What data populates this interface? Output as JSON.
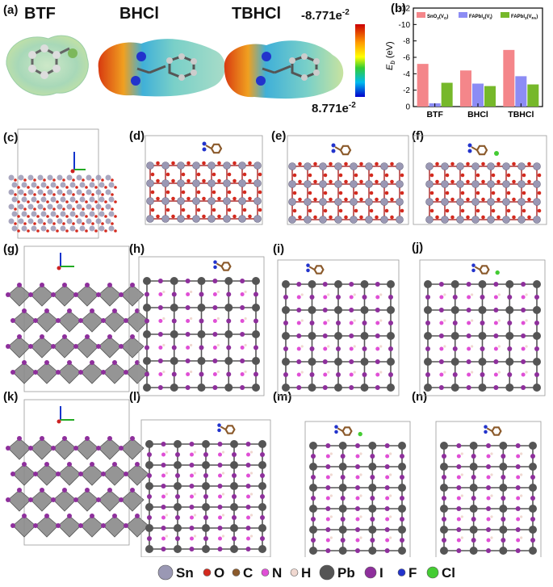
{
  "figure": {
    "panel_a": {
      "label": "(a)",
      "molecules": [
        "BTF",
        "BHCl",
        "TBHCl"
      ],
      "colorbar": {
        "max_label": "-8.771e",
        "max_exp": "-2",
        "min_label": "8.771e",
        "min_exp": "-2"
      }
    },
    "panel_b": {
      "label": "(b)"
    },
    "panel_labels": [
      "(c)",
      "(d)",
      "(e)",
      "(f)",
      "(g)",
      "(h)",
      "(i)",
      "(j)",
      "(k)",
      "(l)",
      "(m)",
      "(n)"
    ],
    "legend": [
      {
        "symbol": "Sn",
        "color": "#9a98b4",
        "size": "large"
      },
      {
        "symbol": "O",
        "color": "#d42a1e",
        "size": "small"
      },
      {
        "symbol": "C",
        "color": "#8b5a2b",
        "size": "small"
      },
      {
        "symbol": "N",
        "color": "#e04fd6",
        "size": "small"
      },
      {
        "symbol": "H",
        "color": "#f0d8d0",
        "size": "small"
      },
      {
        "symbol": "Pb",
        "color": "#555555",
        "size": "large"
      },
      {
        "symbol": "I",
        "color": "#8e2f9c",
        "size": "medium"
      },
      {
        "symbol": "F",
        "color": "#2233cc",
        "size": "small"
      },
      {
        "symbol": "Cl",
        "color": "#44cc33",
        "size": "medium"
      }
    ]
  },
  "chart_data": {
    "type": "bar",
    "title": "",
    "xlabel": "",
    "ylabel": "E_b (eV)",
    "ylabel_main": "E",
    "ylabel_sub": "b",
    "ylabel_unit": " (eV)",
    "ylim": [
      0,
      -12
    ],
    "yticks": [
      0,
      -2,
      -4,
      -6,
      -8,
      -10,
      -12
    ],
    "categories": [
      "BTF",
      "BHCl",
      "TBHCl"
    ],
    "series": [
      {
        "name": "SnO2(VO)",
        "label_main": "SnO",
        "label_sub1": "2",
        "label_mid": "(V",
        "label_sub2": "O",
        "label_end": ")",
        "color": "#f4868a",
        "values": [
          -5.2,
          -4.4,
          -6.9
        ]
      },
      {
        "name": "FAPbI3(VI)",
        "label_main": "FAPbI",
        "label_sub1": "3",
        "label_mid": "(V",
        "label_sub2": "I",
        "label_end": ")",
        "color": "#8c8cf4",
        "values": [
          -0.4,
          -2.8,
          -3.7
        ]
      },
      {
        "name": "FAPbI3(VFA)",
        "label_main": "FAPbI",
        "label_sub1": "3",
        "label_mid": "(V",
        "label_sub2": "FA",
        "label_end": ")",
        "color": "#76b82a",
        "values": [
          -2.9,
          -2.5,
          -2.7
        ]
      }
    ],
    "legend_position": "top"
  }
}
